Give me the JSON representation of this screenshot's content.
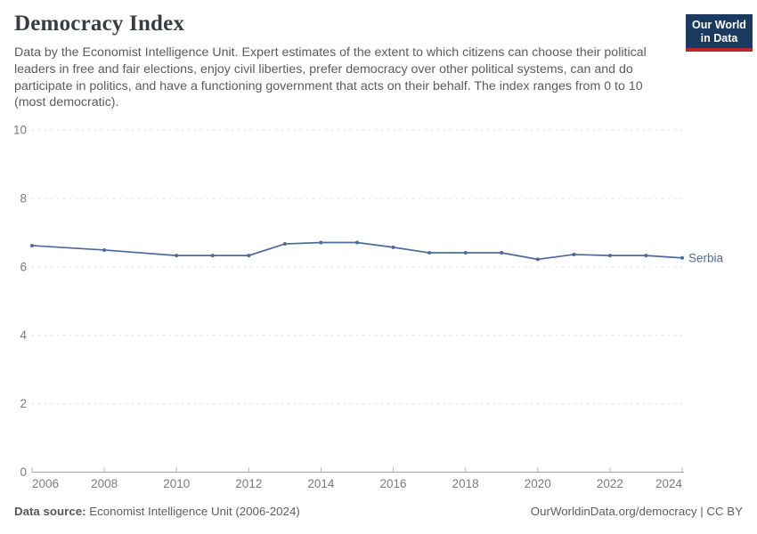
{
  "header": {
    "title": "Democracy Index",
    "subtitle": "Data by the Economist Intelligence Unit. Expert estimates of the extent to which citizens can choose their political leaders in free and fair elections, enjoy civil liberties, prefer democracy over other political systems, can and do participate in politics, and have a functioning government that acts on their behalf. The index ranges from 0 to 10 (most democratic).",
    "logo": {
      "line1": "Our World",
      "line2": "in Data",
      "bg_color": "#1b3a5f",
      "bar_color": "#bf2433"
    }
  },
  "chart_data": {
    "type": "line",
    "title": "Democracy Index",
    "xlabel": "",
    "ylabel": "",
    "x": [
      2006,
      2008,
      2010,
      2011,
      2012,
      2013,
      2014,
      2015,
      2016,
      2017,
      2018,
      2019,
      2020,
      2021,
      2022,
      2023,
      2024
    ],
    "series": [
      {
        "name": "Serbia",
        "color": "#4c6a9c",
        "values": [
          6.62,
          6.49,
          6.33,
          6.33,
          6.33,
          6.67,
          6.71,
          6.71,
          6.57,
          6.41,
          6.41,
          6.41,
          6.22,
          6.36,
          6.33,
          6.33,
          6.26
        ]
      }
    ],
    "xlim": [
      2006,
      2024
    ],
    "ylim": [
      0,
      10
    ],
    "yticks": [
      0,
      2,
      4,
      6,
      8,
      10
    ],
    "xticks": [
      2006,
      2008,
      2010,
      2012,
      2014,
      2016,
      2018,
      2020,
      2022,
      2024
    ],
    "grid": "horizontal-dashed",
    "legend_position": "end-of-line-label",
    "entity_label": "Serbia"
  },
  "footer": {
    "source_label": "Data source:",
    "source_text": " Economist Intelligence Unit (2006-2024)",
    "attribution": "OurWorldinData.org/democracy | CC BY"
  }
}
